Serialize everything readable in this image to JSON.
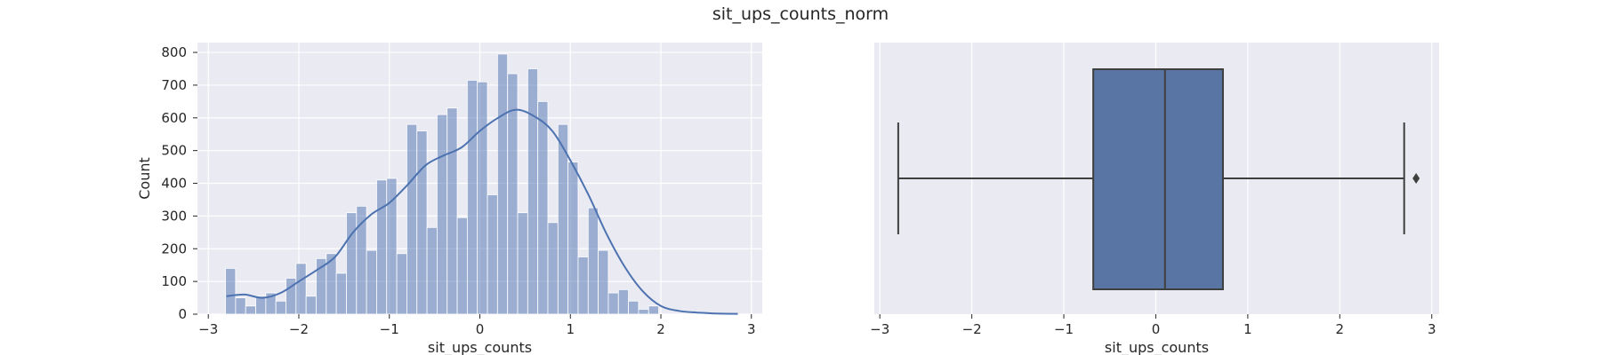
{
  "figure": {
    "suptitle": "sit_ups_counts_norm"
  },
  "colors": {
    "axes_bg": "#eaeaf2",
    "grid": "#ffffff",
    "bar_fill": "#4c72b0",
    "bar_alpha": 0.5,
    "kde_line": "#4c72b0",
    "box_fill": "#5975a4",
    "box_line": "#3f3f3f",
    "text": "#262626"
  },
  "chart_data": [
    {
      "type": "bar",
      "subtype": "histogram_with_kde",
      "title": "",
      "xlabel": "sit_ups_counts",
      "ylabel": "Count",
      "xlim": [
        -3.12,
        3.12
      ],
      "ylim": [
        0,
        830
      ],
      "xticks": [
        -3,
        -2,
        -1,
        0,
        1,
        2,
        3
      ],
      "xtick_labels": [
        "−3",
        "−2",
        "−1",
        "0",
        "1",
        "2",
        "3"
      ],
      "yticks": [
        0,
        100,
        200,
        300,
        400,
        500,
        600,
        700,
        800
      ],
      "ytick_labels": [
        "0",
        "100",
        "200",
        "300",
        "400",
        "500",
        "600",
        "700",
        "800"
      ],
      "grid": true,
      "bins": {
        "start": -2.81,
        "width": 0.1113,
        "counts": [
          140,
          50,
          25,
          55,
          65,
          40,
          110,
          155,
          55,
          170,
          185,
          125,
          310,
          330,
          195,
          410,
          415,
          185,
          580,
          560,
          265,
          610,
          630,
          295,
          715,
          710,
          365,
          795,
          735,
          310,
          750,
          650,
          280,
          580,
          465,
          175,
          325,
          195,
          65,
          75,
          40,
          15,
          25
        ]
      },
      "kde": {
        "x": [
          -2.8,
          -2.6,
          -2.4,
          -2.2,
          -2.0,
          -1.8,
          -1.6,
          -1.4,
          -1.2,
          -1.0,
          -0.8,
          -0.6,
          -0.4,
          -0.2,
          0.0,
          0.2,
          0.4,
          0.6,
          0.8,
          1.0,
          1.2,
          1.4,
          1.6,
          1.8,
          2.0,
          2.2,
          2.4,
          2.6,
          2.85
        ],
        "y": [
          55,
          60,
          50,
          65,
          100,
          135,
          175,
          250,
          305,
          340,
          395,
          455,
          485,
          510,
          560,
          600,
          625,
          605,
          560,
          470,
          365,
          245,
          145,
          70,
          25,
          10,
          5,
          2,
          1
        ]
      }
    },
    {
      "type": "box",
      "title": "",
      "xlabel": "sit_ups_counts",
      "ylabel": "",
      "xlim": [
        -3.06,
        3.08
      ],
      "xticks": [
        -3,
        -2,
        -1,
        0,
        1,
        2,
        3
      ],
      "xtick_labels": [
        "−3",
        "−2",
        "−1",
        "0",
        "1",
        "2",
        "3"
      ],
      "grid": true,
      "box": {
        "whisker_low": -2.8,
        "q1": -0.68,
        "median": 0.1,
        "q3": 0.73,
        "whisker_high": 2.7,
        "outliers": [
          2.83
        ]
      }
    }
  ]
}
